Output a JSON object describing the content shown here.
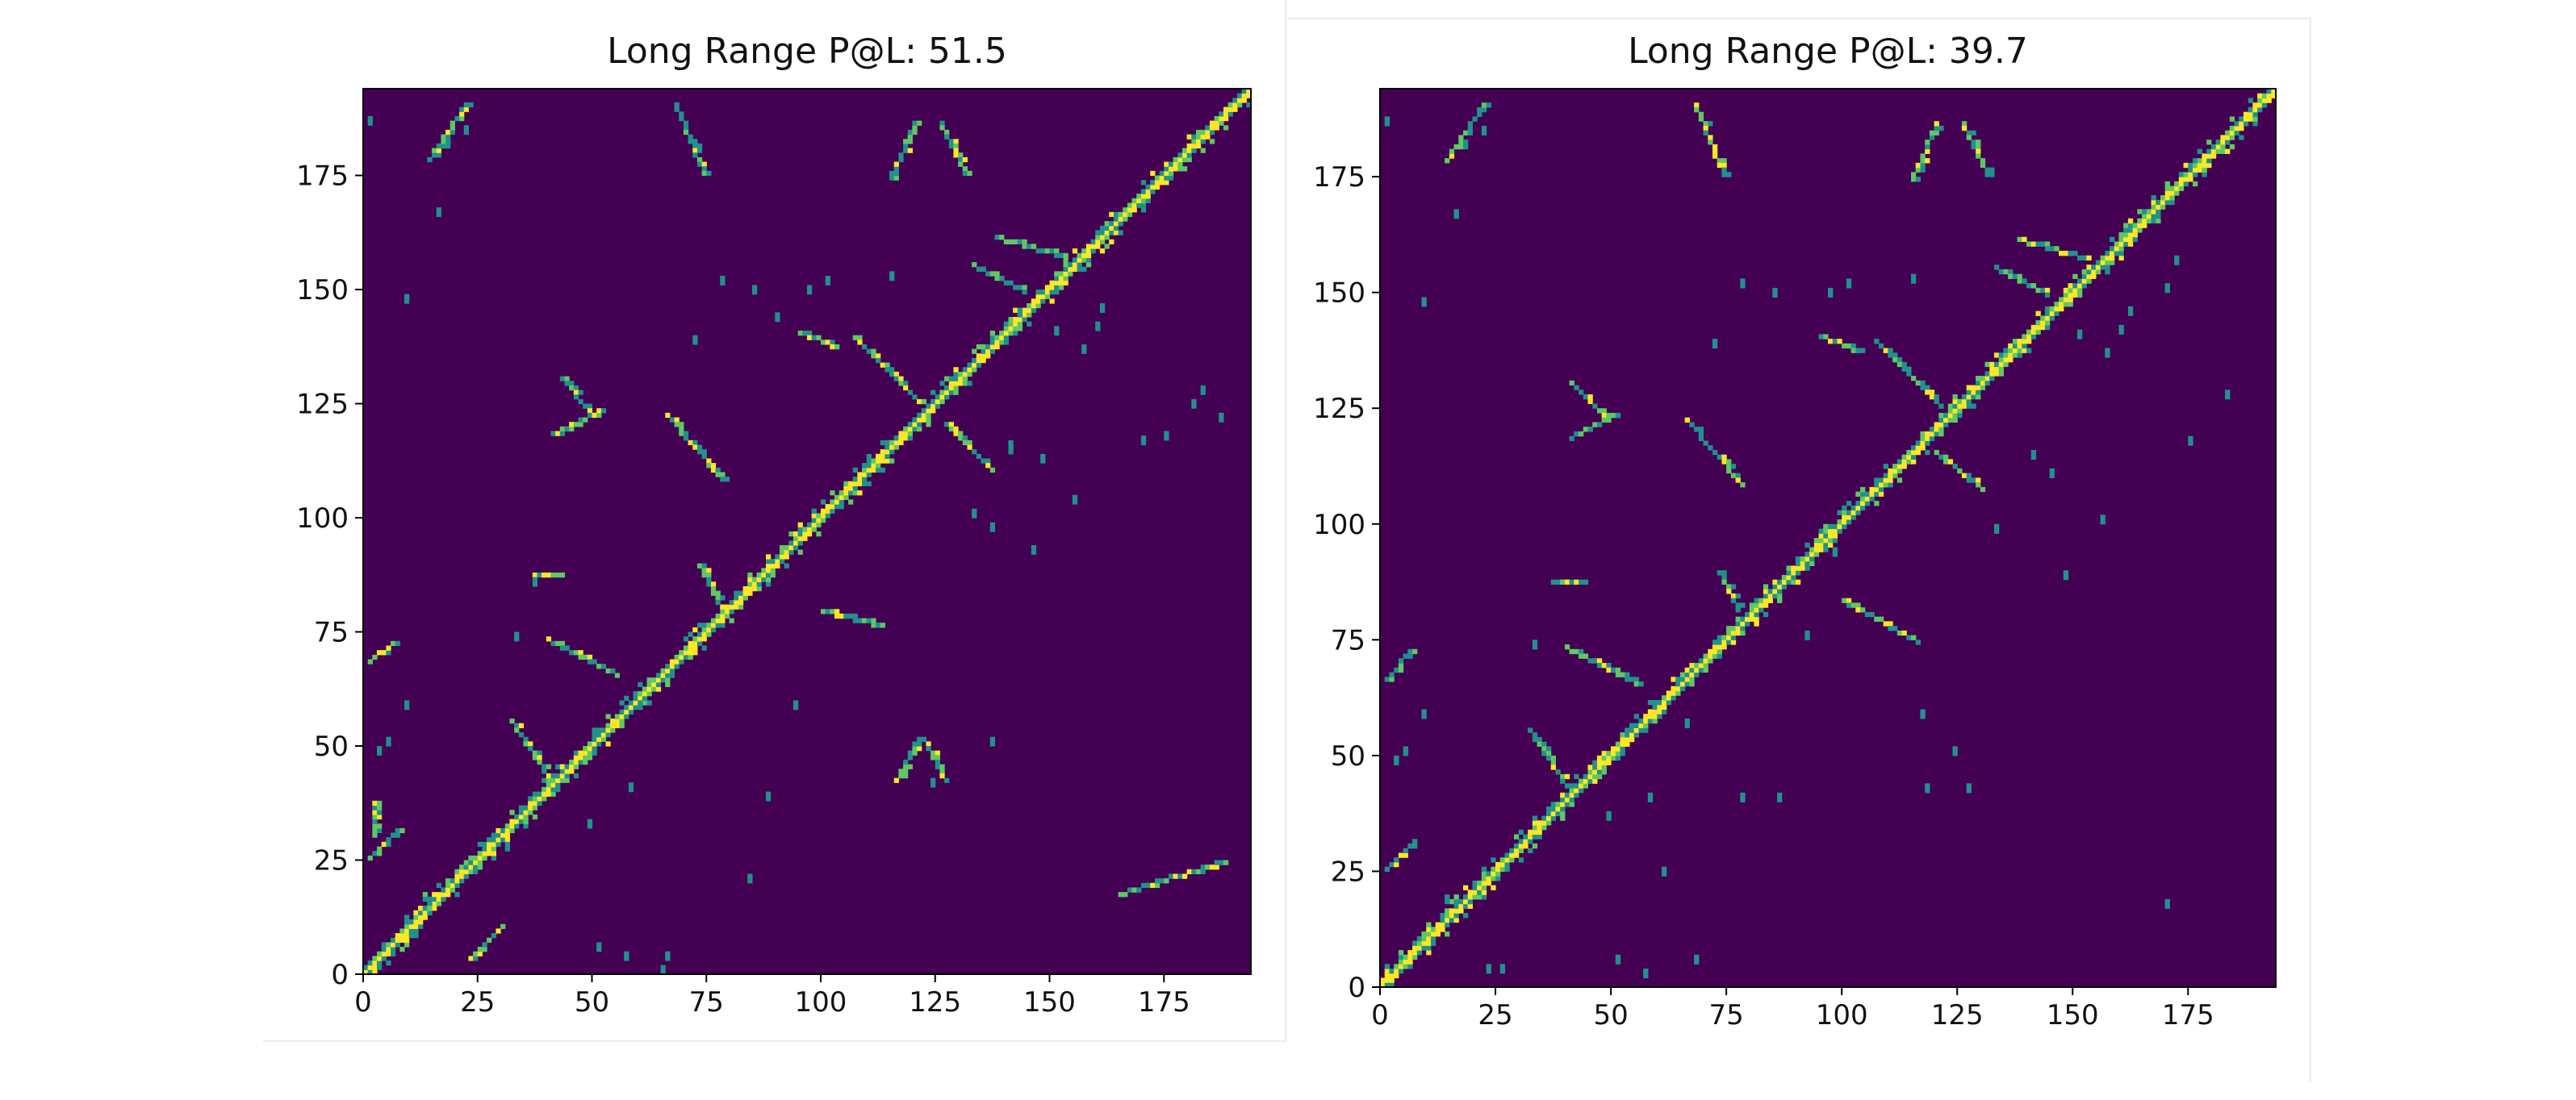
{
  "colors": {
    "background": "#440154",
    "contact_low": "#21918c",
    "contact_mid": "#5ec962",
    "contact_high": "#fde725"
  },
  "chart_data": [
    {
      "type": "heatmap",
      "title": "Long Range P@L: 51.5",
      "xlim": [
        0,
        194
      ],
      "ylim": [
        0,
        194
      ],
      "xticks": [
        "0",
        "25",
        "50",
        "75",
        "100",
        "125",
        "150",
        "175"
      ],
      "yticks": [
        "0",
        "25",
        "50",
        "75",
        "100",
        "125",
        "150",
        "175"
      ],
      "colormap": "viridis",
      "description_of_values": "binary/probability contact map, 1 = predicted contact",
      "features": {
        "diagonal": {
          "from": 0,
          "to": 194,
          "width": 3
        },
        "segments": [
          {
            "x1": 1,
            "y1": 68,
            "x2": 6,
            "y2": 72
          },
          {
            "x1": 1,
            "y1": 25,
            "x2": 7,
            "y2": 31
          },
          {
            "x1": 2,
            "y1": 30,
            "x2": 2,
            "y2": 37
          },
          {
            "x1": 32,
            "y1": 55,
            "x2": 40,
            "y2": 43
          },
          {
            "x1": 40,
            "y1": 73,
            "x2": 55,
            "y2": 65
          },
          {
            "x1": 43,
            "y1": 130,
            "x2": 49,
            "y2": 123
          },
          {
            "x1": 41,
            "y1": 118,
            "x2": 52,
            "y2": 123
          },
          {
            "x1": 66,
            "y1": 122,
            "x2": 78,
            "y2": 108
          },
          {
            "x1": 73,
            "y1": 89,
            "x2": 77,
            "y2": 81
          },
          {
            "x1": 107,
            "y1": 139,
            "x2": 121,
            "y2": 125
          },
          {
            "x1": 115,
            "y1": 174,
            "x2": 120,
            "y2": 186
          },
          {
            "x1": 126,
            "y1": 186,
            "x2": 131,
            "y2": 175
          },
          {
            "x1": 133,
            "y1": 155,
            "x2": 144,
            "y2": 149
          },
          {
            "x1": 138,
            "y1": 161,
            "x2": 152,
            "y2": 157
          },
          {
            "x1": 100,
            "y1": 79,
            "x2": 112,
            "y2": 76
          },
          {
            "x1": 116,
            "y1": 42,
            "x2": 121,
            "y2": 51
          },
          {
            "x1": 122,
            "y1": 51,
            "x2": 127,
            "y2": 42
          },
          {
            "x1": 127,
            "y1": 120,
            "x2": 137,
            "y2": 110
          },
          {
            "x1": 68,
            "y1": 190,
            "x2": 74,
            "y2": 175
          },
          {
            "x1": 14,
            "y1": 178,
            "x2": 22,
            "y2": 190
          },
          {
            "x1": 165,
            "y1": 17,
            "x2": 187,
            "y2": 24
          },
          {
            "x1": 13,
            "y1": 17,
            "x2": 14,
            "y2": 14
          },
          {
            "x1": 23,
            "y1": 3,
            "x2": 30,
            "y2": 10
          },
          {
            "x1": 37,
            "y1": 87,
            "x2": 43,
            "y2": 87
          },
          {
            "x1": 95,
            "y1": 140,
            "x2": 103,
            "y2": 137
          }
        ],
        "dots": [
          [
            1,
            186
          ],
          [
            9,
            147
          ],
          [
            16,
            166
          ],
          [
            18,
            181
          ],
          [
            22,
            184
          ],
          [
            33,
            73
          ],
          [
            37,
            85
          ],
          [
            58,
            40
          ],
          [
            51,
            5
          ],
          [
            57,
            3
          ],
          [
            65,
            0
          ],
          [
            66,
            3
          ],
          [
            84,
            20
          ],
          [
            88,
            38
          ],
          [
            101,
            151
          ],
          [
            115,
            152
          ],
          [
            133,
            100
          ],
          [
            141,
            114
          ],
          [
            137,
            97
          ],
          [
            148,
            112
          ],
          [
            151,
            140
          ],
          [
            157,
            136
          ],
          [
            160,
            141
          ],
          [
            170,
            116
          ],
          [
            175,
            117
          ],
          [
            183,
            127
          ],
          [
            187,
            121
          ],
          [
            181,
            124
          ],
          [
            90,
            143
          ],
          [
            72,
            138
          ],
          [
            60,
            58
          ],
          [
            49,
            32
          ],
          [
            31,
            27
          ],
          [
            9,
            58
          ],
          [
            5,
            50
          ],
          [
            3,
            48
          ],
          [
            124,
            41
          ],
          [
            143,
            144
          ],
          [
            97,
            149
          ],
          [
            85,
            149
          ],
          [
            78,
            151
          ],
          [
            146,
            92
          ],
          [
            141,
            115
          ],
          [
            155,
            103
          ],
          [
            161,
            145
          ],
          [
            137,
            50
          ],
          [
            94,
            58
          ]
        ]
      }
    },
    {
      "type": "heatmap",
      "title": "Long Range P@L: 39.7",
      "xlim": [
        0,
        194
      ],
      "ylim": [
        0,
        194
      ],
      "xticks": [
        "0",
        "25",
        "50",
        "75",
        "100",
        "125",
        "150",
        "175"
      ],
      "yticks": [
        "0",
        "25",
        "50",
        "75",
        "100",
        "125",
        "150",
        "175"
      ],
      "colormap": "viridis",
      "description_of_values": "binary/probability contact map, 1 = predicted contact",
      "features": {
        "diagonal": {
          "from": 0,
          "to": 194,
          "width": 3
        },
        "segments": [
          {
            "x1": 1,
            "y1": 66,
            "x2": 6,
            "y2": 72
          },
          {
            "x1": 1,
            "y1": 25,
            "x2": 7,
            "y2": 31
          },
          {
            "x1": 32,
            "y1": 55,
            "x2": 40,
            "y2": 43
          },
          {
            "x1": 40,
            "y1": 73,
            "x2": 55,
            "y2": 65
          },
          {
            "x1": 41,
            "y1": 130,
            "x2": 48,
            "y2": 123
          },
          {
            "x1": 41,
            "y1": 118,
            "x2": 51,
            "y2": 123
          },
          {
            "x1": 66,
            "y1": 122,
            "x2": 78,
            "y2": 108
          },
          {
            "x1": 73,
            "y1": 89,
            "x2": 77,
            "y2": 81
          },
          {
            "x1": 107,
            "y1": 139,
            "x2": 121,
            "y2": 125
          },
          {
            "x1": 115,
            "y1": 174,
            "x2": 120,
            "y2": 186
          },
          {
            "x1": 126,
            "y1": 186,
            "x2": 131,
            "y2": 175
          },
          {
            "x1": 133,
            "y1": 155,
            "x2": 144,
            "y2": 149
          },
          {
            "x1": 138,
            "y1": 161,
            "x2": 152,
            "y2": 157
          },
          {
            "x1": 100,
            "y1": 83,
            "x2": 116,
            "y2": 74
          },
          {
            "x1": 120,
            "y1": 115,
            "x2": 130,
            "y2": 107
          },
          {
            "x1": 68,
            "y1": 190,
            "x2": 74,
            "y2": 175
          },
          {
            "x1": 14,
            "y1": 178,
            "x2": 22,
            "y2": 190
          },
          {
            "x1": 37,
            "y1": 87,
            "x2": 43,
            "y2": 87
          },
          {
            "x1": 95,
            "y1": 140,
            "x2": 103,
            "y2": 137
          }
        ],
        "dots": [
          [
            1,
            186
          ],
          [
            9,
            147
          ],
          [
            16,
            166
          ],
          [
            18,
            181
          ],
          [
            22,
            184
          ],
          [
            23,
            3
          ],
          [
            26,
            3
          ],
          [
            33,
            73
          ],
          [
            51,
            5
          ],
          [
            57,
            2
          ],
          [
            68,
            5
          ],
          [
            58,
            40
          ],
          [
            49,
            36
          ],
          [
            61,
            24
          ],
          [
            78,
            40
          ],
          [
            86,
            40
          ],
          [
            92,
            75
          ],
          [
            98,
            93
          ],
          [
            101,
            151
          ],
          [
            115,
            152
          ],
          [
            133,
            98
          ],
          [
            141,
            114
          ],
          [
            145,
            110
          ],
          [
            157,
            136
          ],
          [
            160,
            141
          ],
          [
            170,
            150
          ],
          [
            172,
            156
          ],
          [
            175,
            117
          ],
          [
            183,
            127
          ],
          [
            151,
            140
          ],
          [
            162,
            145
          ],
          [
            156,
            100
          ],
          [
            148,
            88
          ],
          [
            124,
            50
          ],
          [
            117,
            58
          ],
          [
            118,
            42
          ],
          [
            127,
            42
          ],
          [
            170,
            17
          ],
          [
            14,
            18
          ],
          [
            5,
            50
          ],
          [
            9,
            58
          ],
          [
            3,
            48
          ],
          [
            97,
            149
          ],
          [
            85,
            149
          ],
          [
            78,
            151
          ],
          [
            72,
            138
          ],
          [
            66,
            56
          ]
        ]
      }
    }
  ]
}
